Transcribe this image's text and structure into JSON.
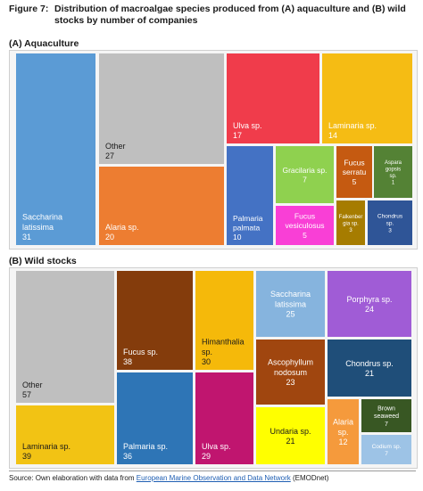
{
  "figure": {
    "number": "Figure 7:",
    "title": "Distribution of macroalgae species produced from (A) aquaculture and (B) wild stocks by number of companies"
  },
  "source": {
    "prefix": "Source: Own elaboration with data from ",
    "link_text": "European Marine Observation and Data Network",
    "suffix": " (EMODnet)"
  },
  "chart_data": [
    {
      "type": "treemap",
      "title": "(A) Aquaculture",
      "items": [
        {
          "name": "Saccharina latissima",
          "lines": [
            "Saccharina",
            "latissima"
          ],
          "value": 31,
          "color": "#5b9bd5",
          "text": "#ffffff"
        },
        {
          "name": "Other",
          "lines": [
            "Other"
          ],
          "value": 27,
          "color": "#bfbfbf",
          "text": "#1a1a1a"
        },
        {
          "name": "Alaria sp.",
          "lines": [
            "Alaria sp."
          ],
          "value": 20,
          "color": "#ed7d31",
          "text": "#ffffff"
        },
        {
          "name": "Ulva sp.",
          "lines": [
            "Ulva sp."
          ],
          "value": 17,
          "color": "#f03c4b",
          "text": "#ffffff"
        },
        {
          "name": "Laminaria sp.",
          "lines": [
            "Laminaria sp."
          ],
          "value": 14,
          "color": "#f5bc14",
          "text": "#ffffff"
        },
        {
          "name": "Palmaria palmata",
          "lines": [
            "Palmaria",
            "palmata"
          ],
          "value": 10,
          "color": "#4472c4",
          "text": "#ffffff"
        },
        {
          "name": "Gracilaria sp.",
          "lines": [
            "Gracilaria sp."
          ],
          "value": 7,
          "color": "#8fd14f",
          "text": "#ffffff"
        },
        {
          "name": "Fucus vesiculosus",
          "lines": [
            "Fucus",
            "vesiculosus"
          ],
          "value": 5,
          "color": "#f93fd6",
          "text": "#ffffff"
        },
        {
          "name": "Fucus serratu",
          "lines": [
            "Fucus",
            "serratu"
          ],
          "value": 5,
          "color": "#c55a11",
          "text": "#ffffff"
        },
        {
          "name": "Asparagopsis sp.",
          "lines": [
            "Aspara",
            "gopsis",
            "sp."
          ],
          "value": 1,
          "color": "#548235",
          "text": "#ffffff"
        },
        {
          "name": "Falkenbergia sp.",
          "lines": [
            "Falkenber",
            "gia sp."
          ],
          "value": 3,
          "color": "#a67c00",
          "text": "#ffffff"
        },
        {
          "name": "Chondrus sp.",
          "lines": [
            "Chondrus",
            "sp."
          ],
          "value": 3,
          "color": "#2f5597",
          "text": "#ffffff"
        }
      ]
    },
    {
      "type": "treemap",
      "title": "(B) Wild stocks",
      "items": [
        {
          "name": "Other",
          "lines": [
            "Other"
          ],
          "value": 57,
          "color": "#bfbfbf",
          "text": "#1a1a1a"
        },
        {
          "name": "Laminaria sp.",
          "lines": [
            "Laminaria sp."
          ],
          "value": 39,
          "color": "#f2c314",
          "text": "#1a1a1a"
        },
        {
          "name": "Fucus sp.",
          "lines": [
            "Fucus sp."
          ],
          "value": 38,
          "color": "#843c0c",
          "text": "#ffffff"
        },
        {
          "name": "Palmaria sp.",
          "lines": [
            "Palmaria sp."
          ],
          "value": 36,
          "color": "#2e75b6",
          "text": "#ffffff"
        },
        {
          "name": "Himanthalia sp.",
          "lines": [
            "Himanthalia",
            "sp."
          ],
          "value": 30,
          "color": "#f5b90a",
          "text": "#1a1a1a"
        },
        {
          "name": "Ulva sp.",
          "lines": [
            "Ulva sp."
          ],
          "value": 29,
          "color": "#c0156f",
          "text": "#ffffff"
        },
        {
          "name": "Saccharina latissima",
          "lines": [
            "Saccharina",
            "latissima"
          ],
          "value": 25,
          "color": "#86b4de",
          "text": "#ffffff"
        },
        {
          "name": "Porphyra sp.",
          "lines": [
            "Porphyra sp."
          ],
          "value": 24,
          "color": "#a05cd6",
          "text": "#ffffff"
        },
        {
          "name": "Ascophyllum nodosum",
          "lines": [
            "Ascophyllum",
            "nodosum"
          ],
          "value": 23,
          "color": "#a0460f",
          "text": "#ffffff"
        },
        {
          "name": "Chondrus sp.",
          "lines": [
            "Chondrus sp."
          ],
          "value": 21,
          "color": "#1f4e79",
          "text": "#ffffff"
        },
        {
          "name": "Undaria sp.",
          "lines": [
            "Undaria sp."
          ],
          "value": 21,
          "color": "#ffff00",
          "text": "#1a1a1a"
        },
        {
          "name": "Alaria sp.",
          "lines": [
            "Alaria",
            "sp."
          ],
          "value": 12,
          "color": "#f59a3c",
          "text": "#ffffff"
        },
        {
          "name": "Brown seaweed",
          "lines": [
            "Brown",
            "seaweed"
          ],
          "value": 7,
          "color": "#385723",
          "text": "#ffffff"
        },
        {
          "name": "Codium sp.",
          "lines": [
            "Codium sp."
          ],
          "value": 7,
          "color": "#9dc3e6",
          "text": "#ffffff"
        }
      ]
    }
  ]
}
